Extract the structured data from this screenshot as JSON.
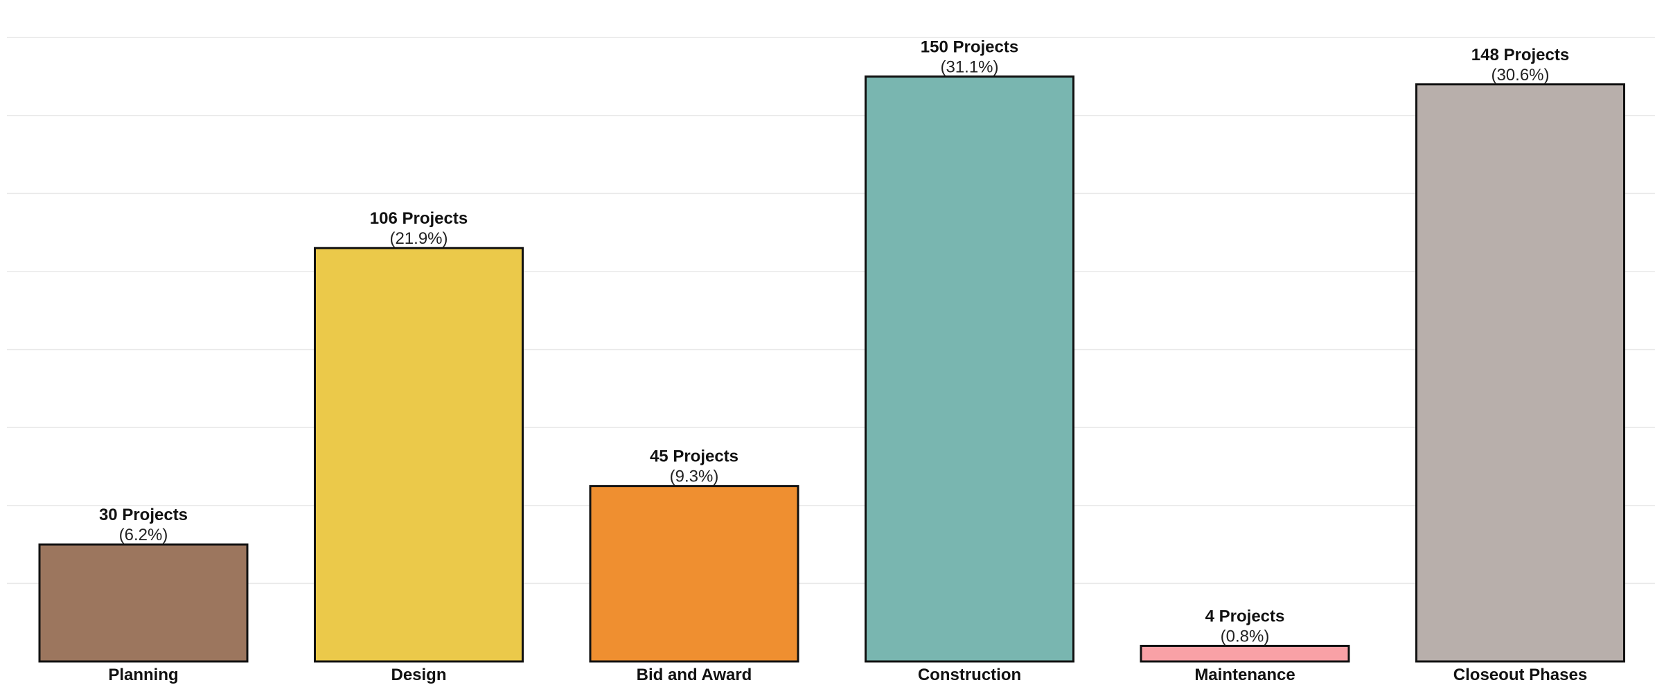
{
  "chart_data": {
    "type": "bar",
    "title": "",
    "xlabel": "",
    "ylabel": "",
    "ylim": [
      0,
      160
    ],
    "grid": "horizontal",
    "categories": [
      "Planning",
      "Design",
      "Bid and Award",
      "Construction",
      "Maintenance",
      "Closeout Phases"
    ],
    "values": [
      30,
      106,
      45,
      150,
      4,
      148
    ],
    "value_labels": [
      "30 Projects",
      "106 Projects",
      "45 Projects",
      "150 Projects",
      "4 Projects",
      "148 Projects"
    ],
    "percent_labels": [
      "(6.2%)",
      "(21.9%)",
      "(9.3%)",
      "(31.1%)",
      "(0.8%)",
      "(30.6%)"
    ],
    "colors": [
      "#9c765e",
      "#ebc94a",
      "#ef8f30",
      "#79b6b0",
      "#f9a1a6",
      "#b8afab"
    ]
  }
}
